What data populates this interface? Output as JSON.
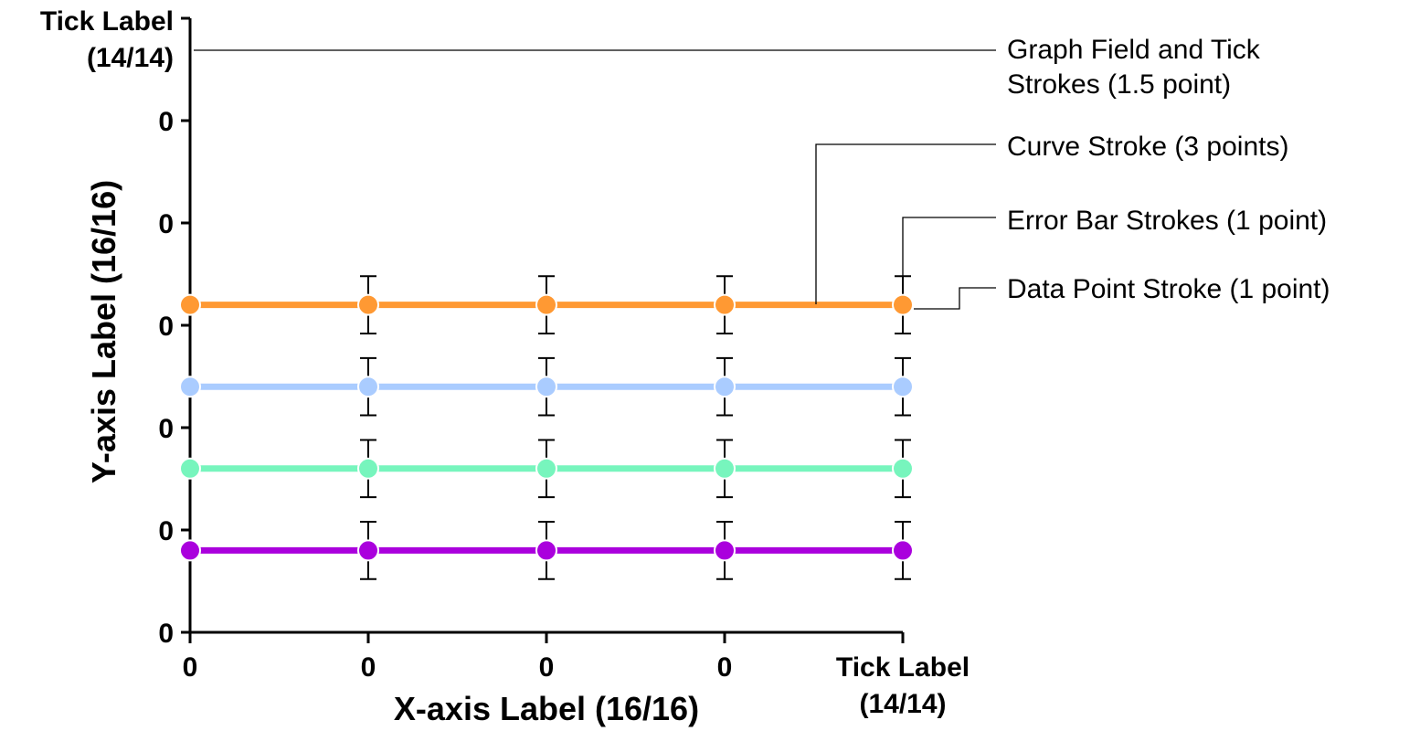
{
  "chart_data": {
    "type": "line",
    "x": [
      "0",
      "0",
      "0",
      "0",
      "Tick Label (14/14)"
    ],
    "y_tick_labels": [
      "0",
      "0",
      "0",
      "0",
      "0",
      "0",
      "Tick Label (14/14)"
    ],
    "x_tick_top_label": "Tick Label",
    "x_tick_bottom_label": "(14/14)",
    "y_tick_top_label": "Tick Label",
    "y_tick_bottom_label": "(14/14)",
    "xlabel": "X-axis Label (16/16)",
    "ylabel": "Y-axis Label (16/16)",
    "ylim": [
      0,
      6
    ],
    "series": [
      {
        "color": "#ff9933",
        "values": [
          3.2,
          3.2,
          3.2,
          3.2,
          3.2
        ],
        "error": [
          0.28,
          0.28,
          0.28,
          0.28,
          0.28
        ]
      },
      {
        "color": "#aaccff",
        "values": [
          2.4,
          2.4,
          2.4,
          2.4,
          2.4
        ],
        "error": [
          0.28,
          0.28,
          0.28,
          0.28,
          0.28
        ]
      },
      {
        "color": "#77f5bd",
        "values": [
          1.6,
          1.6,
          1.6,
          1.6,
          1.6
        ],
        "error": [
          0.28,
          0.28,
          0.28,
          0.28,
          0.28
        ]
      },
      {
        "color": "#aa00dd",
        "values": [
          0.8,
          0.8,
          0.8,
          0.8,
          0.8
        ],
        "error": [
          0.28,
          0.28,
          0.28,
          0.28,
          0.28
        ]
      }
    ],
    "error_bars_on_first_point": false,
    "grid": false,
    "annotations": [
      {
        "lines": [
          "Graph Field and Tick",
          "Strokes (1.5 point)"
        ],
        "target": "graph-field"
      },
      {
        "lines": [
          "Curve Stroke (3 points)"
        ],
        "target": "curve"
      },
      {
        "lines": [
          "Error Bar Strokes (1 point)"
        ],
        "target": "error-bar"
      },
      {
        "lines": [
          "Data Point Stroke (1 point)"
        ],
        "target": "data-point"
      }
    ]
  }
}
